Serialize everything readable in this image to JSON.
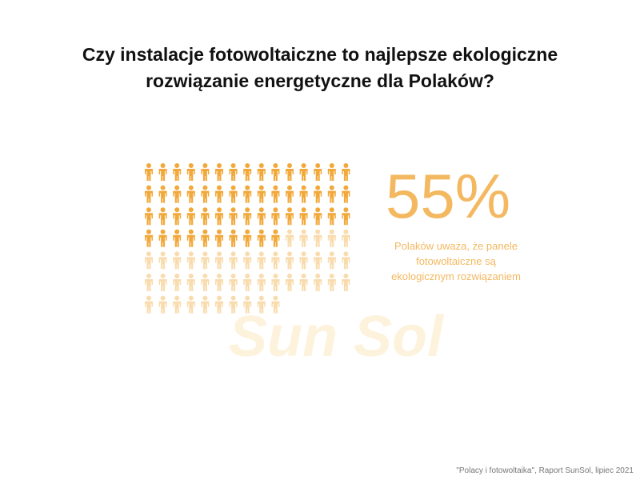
{
  "chart_data": {
    "type": "pictogram",
    "title": "Czy instalacje fotowoltaiczne to najlepsze ekologiczne rozwiązanie energetyczne dla Polaków?",
    "values": [
      55
    ],
    "value_labels": [
      "55%"
    ],
    "description": "Polaków uważa, że panele fotowoltaiczne są ekologicznym rozwiązaniem",
    "color": "#f2a93b",
    "empty_color": "#f9dcae",
    "label_color": "#f3b860",
    "watermark": "Sun Sol",
    "source": "\"Polacy i fotowoltaika\", Raport SunSol, lipiec 2021"
  }
}
